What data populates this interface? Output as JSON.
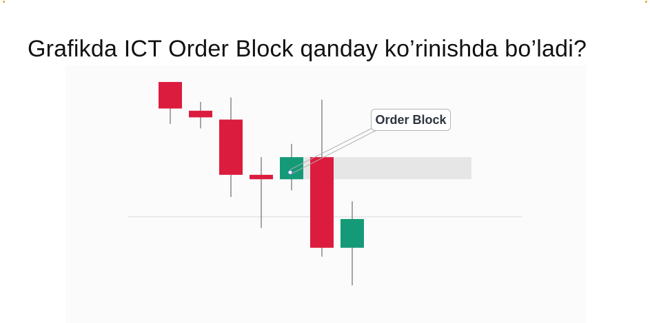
{
  "slide": {
    "title": "Grafikda ICT Order Block qanday ko’rinishda bo’ladi?"
  },
  "chart_data": {
    "type": "candlestick",
    "title": "",
    "xlabel": "",
    "ylabel": "",
    "grid": false,
    "candles": [
      {
        "open": 100,
        "high": 100,
        "low": 81,
        "close": 88,
        "direction": "bearish"
      },
      {
        "open": 87,
        "high": 91,
        "low": 79,
        "close": 84,
        "direction": "bearish"
      },
      {
        "open": 83,
        "high": 93,
        "low": 48,
        "close": 58,
        "direction": "bearish"
      },
      {
        "open": 58,
        "high": 66,
        "low": 34,
        "close": 56,
        "direction": "bearish"
      },
      {
        "open": 56,
        "high": 72,
        "low": 51,
        "close": 66,
        "direction": "bullish"
      },
      {
        "open": 66,
        "high": 92,
        "low": 21,
        "close": 25,
        "direction": "bearish"
      },
      {
        "open": 25,
        "high": 46,
        "low": 8,
        "close": 38,
        "direction": "bullish"
      }
    ],
    "ylim": [
      0,
      105
    ],
    "order_block_zone": {
      "low": 56,
      "high": 66,
      "from_candle": 4
    },
    "reference_line": 39,
    "annotation": {
      "text": "Order Block",
      "points_to_candle": 4
    }
  },
  "colors": {
    "bearish": "#dc1c3e",
    "bullish": "#159a77",
    "wick": "#777777",
    "zone": "#e6e6e6",
    "reference_line": "#d9d9d9",
    "callout_line": "#b0b0b0"
  }
}
